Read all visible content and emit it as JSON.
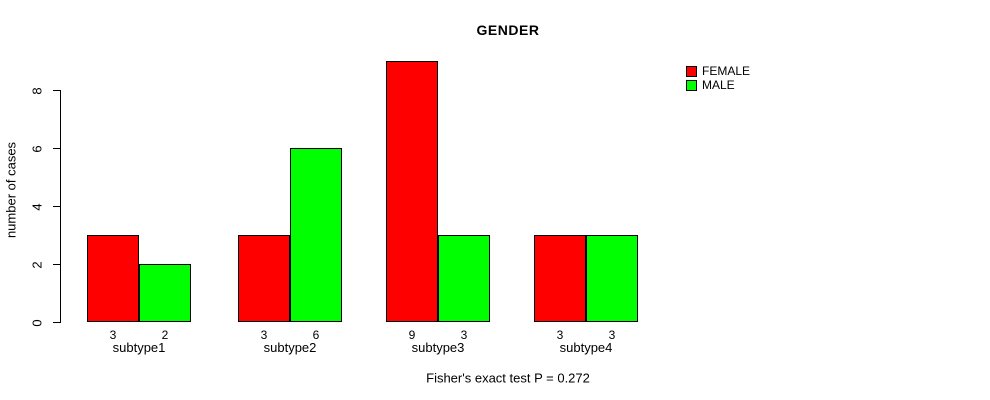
{
  "chart_data": {
    "type": "bar",
    "title": "GENDER",
    "ylabel": "number of cases",
    "xlabel": "",
    "categories": [
      "subtype1",
      "subtype2",
      "subtype3",
      "subtype4"
    ],
    "series": [
      {
        "name": "FEMALE",
        "color": "#ff0000",
        "values": [
          3,
          3,
          9,
          3
        ]
      },
      {
        "name": "MALE",
        "color": "#00ff00",
        "values": [
          2,
          6,
          3,
          3
        ]
      }
    ],
    "yticks": [
      0,
      2,
      4,
      6,
      8
    ],
    "ylim": [
      0,
      9
    ],
    "grid": false,
    "legend_position": "top-right",
    "bar_value_labels": true,
    "annotation": "Fisher's exact test P = 0.272"
  }
}
